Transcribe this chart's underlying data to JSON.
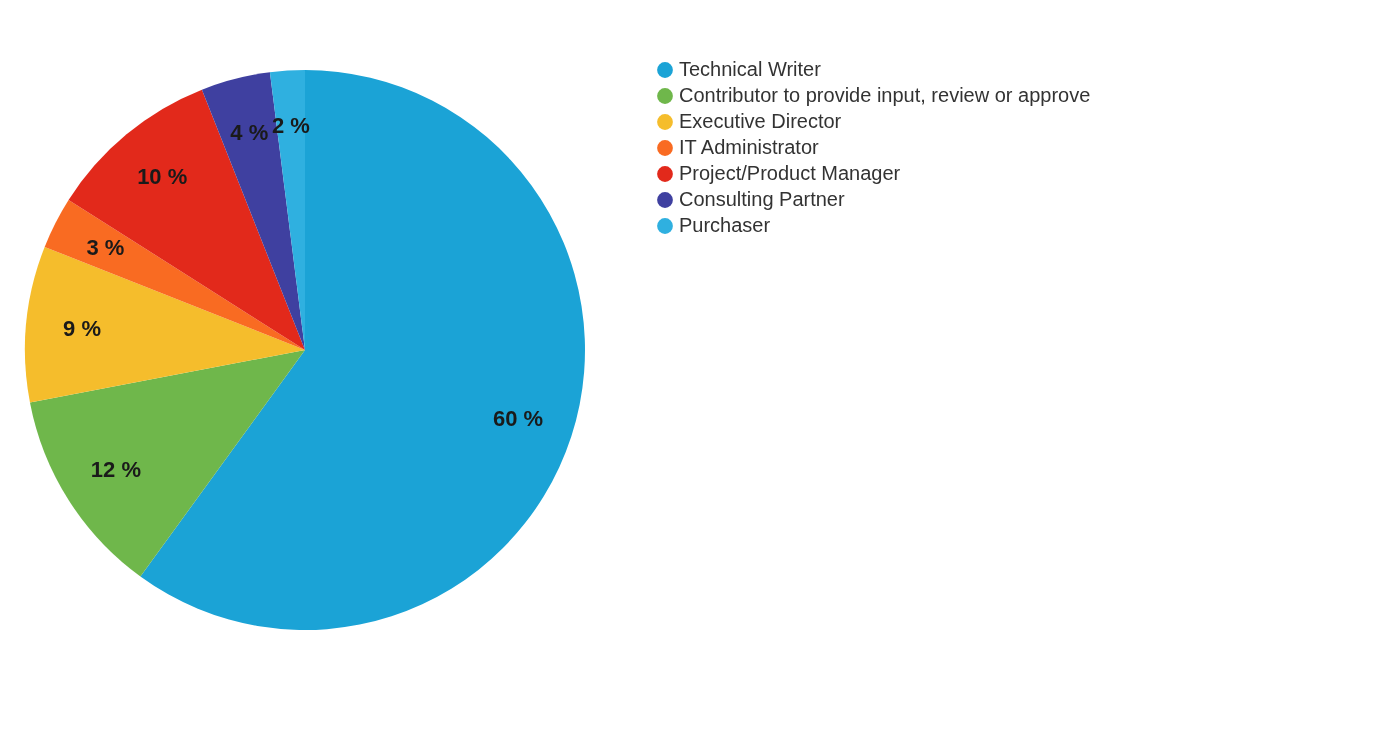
{
  "chart_data": {
    "type": "pie",
    "categories": [
      "Technical Writer",
      "Contributor to provide input, review or approve",
      "Executive Director",
      "IT Administrator",
      "Project/Product Manager",
      "Consulting Partner",
      "Purchaser"
    ],
    "values": [
      60,
      12,
      9,
      3,
      10,
      4,
      2
    ],
    "colors": [
      "#1ba3d6",
      "#6fb74b",
      "#f5bd2c",
      "#f96b22",
      "#e2291b",
      "#3f40a0",
      "#2fb0e0"
    ],
    "value_labels": [
      "60 %",
      "12 %",
      "9 %",
      "3 %",
      "10 %",
      "4 %",
      "2 %"
    ],
    "legend": "right"
  }
}
